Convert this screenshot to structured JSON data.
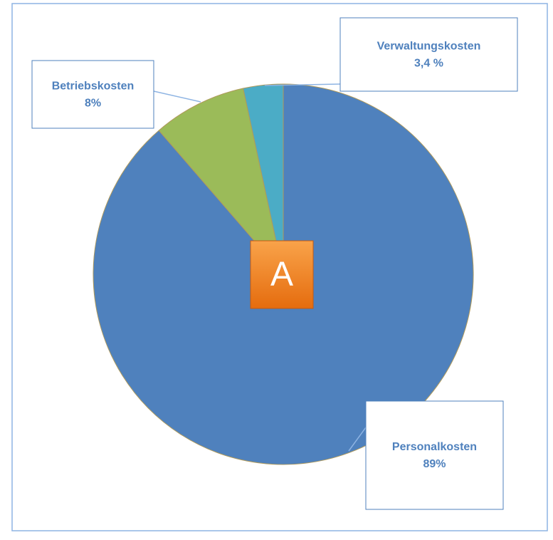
{
  "chart_data": {
    "type": "pie",
    "categories": [
      "Personalkosten",
      "Betriebskosten",
      "Verwaltungskosten"
    ],
    "values": [
      89,
      8,
      3.4
    ],
    "value_labels": [
      "89%",
      "8%",
      "3,4 %"
    ],
    "colors": [
      "#4f81bd",
      "#9bbb59",
      "#4bacc6"
    ],
    "annotation": "A"
  }
}
